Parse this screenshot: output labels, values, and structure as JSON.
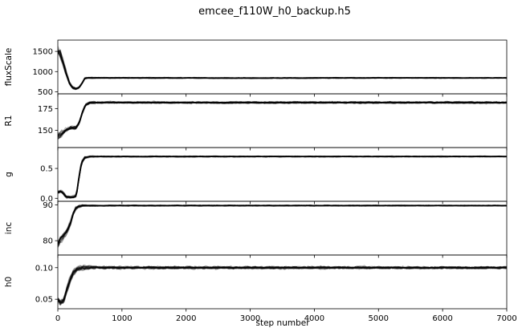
{
  "chart_data": {
    "type": "line",
    "title": "emcee_f110W_h0_backup.h5",
    "xlabel": "step number",
    "xlim": [
      0,
      7000
    ],
    "xticks": [
      0,
      1000,
      2000,
      3000,
      4000,
      5000,
      6000,
      7000
    ],
    "xtick_labels": [
      "0",
      "1000",
      "2000",
      "3000",
      "4000",
      "5000",
      "6000",
      "7000"
    ],
    "line_color": "#000000",
    "series_opacity": 0.3,
    "panels": [
      {
        "ylabel": "fluxScale",
        "ylim": [
          450,
          1780
        ],
        "yticks": [
          500,
          1000,
          1500
        ],
        "ytick_labels": [
          "500",
          "1000",
          "1500"
        ],
        "trend_x": [
          0,
          40,
          80,
          130,
          180,
          230,
          280,
          330,
          380,
          420,
          470,
          600,
          1000,
          3000,
          5000,
          7000
        ],
        "trend_y": [
          1480,
          1420,
          1250,
          950,
          720,
          600,
          570,
          600,
          720,
          830,
          845,
          845,
          845,
          840,
          845,
          843
        ],
        "spread_x": [
          0,
          60,
          150,
          300,
          450,
          7000
        ],
        "spread_y": [
          330,
          260,
          120,
          60,
          35,
          28
        ]
      },
      {
        "ylabel": "R1",
        "ylim": [
          130,
          192
        ],
        "yticks": [
          150,
          175
        ],
        "ytick_labels": [
          "150",
          "175"
        ],
        "trend_x": [
          0,
          60,
          120,
          200,
          280,
          330,
          380,
          430,
          500,
          700,
          1000,
          3000,
          5000,
          7000
        ],
        "trend_y": [
          143,
          146,
          150,
          153,
          153,
          158,
          170,
          179,
          182,
          182,
          182,
          182,
          182,
          182
        ],
        "spread_x": [
          0,
          100,
          250,
          400,
          600,
          7000
        ],
        "spread_y": [
          8,
          6,
          4,
          3.5,
          3,
          3
        ]
      },
      {
        "ylabel": "g",
        "ylim": [
          -0.05,
          0.85
        ],
        "yticks": [
          0,
          0.5
        ],
        "ytick_labels": [
          "0.0",
          "0.5"
        ],
        "trend_x": [
          0,
          50,
          90,
          130,
          180,
          250,
          290,
          330,
          370,
          420,
          500,
          1000,
          3000,
          5000,
          7000
        ],
        "trend_y": [
          0.1,
          0.12,
          0.08,
          0.02,
          0.02,
          0.02,
          0.05,
          0.35,
          0.6,
          0.68,
          0.7,
          0.7,
          0.7,
          0.7,
          0.7
        ],
        "spread_x": [
          0,
          200,
          350,
          500,
          7000
        ],
        "spread_y": [
          0.06,
          0.04,
          0.08,
          0.025,
          0.02
        ]
      },
      {
        "ylabel": "inc",
        "ylim": [
          76,
          91
        ],
        "yticks": [
          80,
          90
        ],
        "ytick_labels": [
          "80",
          "90"
        ],
        "trend_x": [
          0,
          40,
          90,
          150,
          200,
          240,
          280,
          320,
          380,
          450,
          1000,
          3000,
          5000,
          7000
        ],
        "trend_y": [
          79,
          80.5,
          81.5,
          83,
          85,
          87.5,
          89,
          89.5,
          89.8,
          89.8,
          89.8,
          89.8,
          89.8,
          89.8
        ],
        "spread_x": [
          0,
          150,
          300,
          450,
          7000
        ],
        "spread_y": [
          2.5,
          2,
          0.8,
          0.4,
          0.35
        ]
      },
      {
        "ylabel": "h0",
        "ylim": [
          0.035,
          0.12
        ],
        "yticks": [
          0.05,
          0.1
        ],
        "ytick_labels": [
          "0.05",
          "0.10"
        ],
        "trend_x": [
          0,
          40,
          90,
          140,
          190,
          240,
          300,
          400,
          600,
          1000,
          3000,
          5000,
          7000
        ],
        "trend_y": [
          0.05,
          0.045,
          0.048,
          0.065,
          0.08,
          0.092,
          0.098,
          0.1,
          0.1,
          0.1,
          0.1,
          0.1,
          0.1
        ],
        "spread_x": [
          0,
          150,
          300,
          600,
          7000
        ],
        "spread_y": [
          0.008,
          0.01,
          0.008,
          0.006,
          0.005
        ]
      }
    ]
  }
}
